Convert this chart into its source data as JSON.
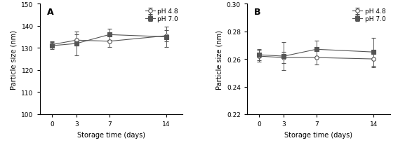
{
  "x": [
    0,
    3,
    7,
    14
  ],
  "panel_A": {
    "label": "A",
    "ylabel": "Particle size (nm)",
    "xlabel": "Storage time (days)",
    "ylim": [
      100,
      150
    ],
    "yticks": [
      100,
      110,
      120,
      130,
      140,
      150
    ],
    "ph48_mean": [
      131.5,
      133.5,
      133.0,
      135.5
    ],
    "ph48_err": [
      1.5,
      2.5,
      2.5,
      2.5
    ],
    "ph70_mean": [
      131.0,
      132.0,
      136.0,
      135.0
    ],
    "ph70_err": [
      1.5,
      5.5,
      2.5,
      4.5
    ]
  },
  "panel_B": {
    "label": "B",
    "ylabel": "Particle size (nm)",
    "xlabel": "Storage time (days)",
    "ylim": [
      0.22,
      0.3
    ],
    "yticks": [
      0.22,
      0.24,
      0.26,
      0.28,
      0.3
    ],
    "ph48_mean": [
      0.262,
      0.261,
      0.261,
      0.26
    ],
    "ph48_err": [
      0.004,
      0.004,
      0.005,
      0.006
    ],
    "ph70_mean": [
      0.263,
      0.262,
      0.267,
      0.265
    ],
    "ph70_err": [
      0.004,
      0.01,
      0.006,
      0.01
    ]
  },
  "legend_ph48": "pH 4.8",
  "legend_ph70": "pH 7.0",
  "line_color": "#555555",
  "bg_color": "#ffffff",
  "font_size": 6.5,
  "label_fontsize": 7,
  "tick_fontsize": 6.5,
  "panel_label_fontsize": 9
}
